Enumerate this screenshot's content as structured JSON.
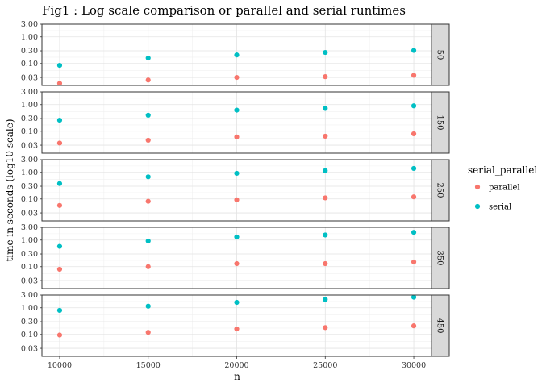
{
  "chart_data": {
    "type": "scatter",
    "title": "Fig1 : Log scale comparison or parallel and serial runtimes",
    "xlabel": "n",
    "ylabel": "time in seconds (log10 scale)",
    "y_scale": "log10",
    "ylim": [
      0.015,
      3.0
    ],
    "xlim": [
      9000,
      31000
    ],
    "x_ticks": [
      10000,
      15000,
      20000,
      25000,
      30000
    ],
    "y_ticks": [
      3.0,
      1.0,
      0.3,
      0.1,
      0.03
    ],
    "y_tick_labels": [
      "3.00",
      "1.00",
      "0.30",
      "0.10",
      "0.03"
    ],
    "x_tick_labels": [
      "10000",
      "15000",
      "20000",
      "25000",
      "30000"
    ],
    "grid": true,
    "facet_var": "panel",
    "facets": [
      "50",
      "150",
      "250",
      "350",
      "450"
    ],
    "legend": {
      "title": "serial_parallel",
      "position": "right",
      "entries": [
        {
          "label": "parallel",
          "color": "#F8766D"
        },
        {
          "label": "serial",
          "color": "#00BFC4"
        }
      ]
    },
    "x": [
      10000,
      15000,
      20000,
      25000,
      30000
    ],
    "panels": [
      {
        "facet": "50",
        "series": [
          {
            "name": "parallel",
            "values": [
              0.018,
              0.024,
              0.03,
              0.032,
              0.036
            ]
          },
          {
            "name": "serial",
            "values": [
              0.085,
              0.16,
              0.21,
              0.26,
              0.31
            ]
          }
        ]
      },
      {
        "facet": "150",
        "series": [
          {
            "name": "parallel",
            "values": [
              0.036,
              0.046,
              0.061,
              0.065,
              0.08
            ]
          },
          {
            "name": "serial",
            "values": [
              0.26,
              0.4,
              0.62,
              0.72,
              0.9
            ]
          }
        ]
      },
      {
        "facet": "250",
        "series": [
          {
            "name": "parallel",
            "values": [
              0.057,
              0.082,
              0.093,
              0.11,
              0.12
            ]
          },
          {
            "name": "serial",
            "values": [
              0.38,
              0.68,
              0.92,
              1.15,
              1.4
            ]
          }
        ]
      },
      {
        "facet": "350",
        "series": [
          {
            "name": "parallel",
            "values": [
              0.08,
              0.1,
              0.13,
              0.13,
              0.15
            ]
          },
          {
            "name": "serial",
            "values": [
              0.58,
              0.92,
              1.3,
              1.55,
              1.95
            ]
          }
        ]
      },
      {
        "facet": "450",
        "series": [
          {
            "name": "parallel",
            "values": [
              0.095,
              0.12,
              0.16,
              0.18,
              0.21
            ]
          },
          {
            "name": "serial",
            "values": [
              0.8,
              1.15,
              1.6,
              2.05,
              2.5
            ]
          }
        ]
      }
    ]
  }
}
